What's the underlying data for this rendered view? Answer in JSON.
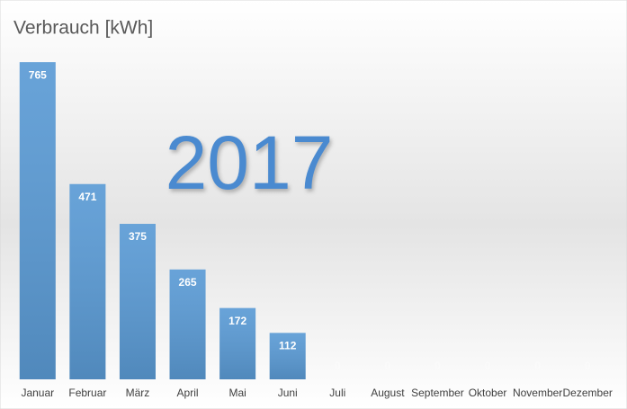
{
  "chart_data": {
    "type": "bar",
    "title": "Verbrauch [kWh]",
    "annotation": "2017",
    "categories": [
      "Januar",
      "Februar",
      "März",
      "April",
      "Mai",
      "Juni",
      "Juli",
      "August",
      "September",
      "Oktober",
      "November",
      "Dezember"
    ],
    "values": [
      765,
      471,
      375,
      265,
      172,
      112,
      0,
      0,
      0,
      0,
      0,
      0
    ],
    "color": "#5b9bd5",
    "ylim": [
      0,
      800
    ]
  }
}
